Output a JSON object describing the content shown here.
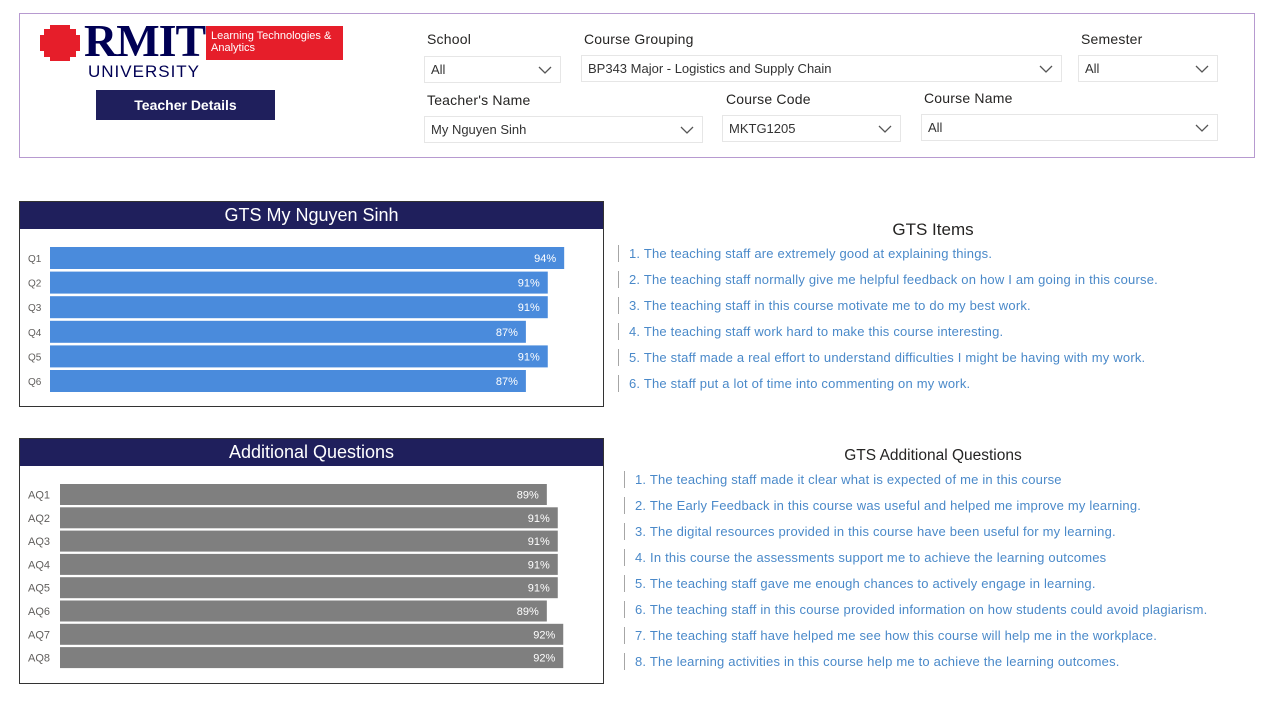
{
  "logo": {
    "wordmark": "RMIT",
    "university": "UNIVERSITY",
    "tag": "Learning Technologies & Analytics"
  },
  "header": {
    "teacher_details_button": "Teacher Details"
  },
  "filters": {
    "school": {
      "label": "School",
      "value": "All"
    },
    "course_grouping": {
      "label": "Course Grouping",
      "value": "BP343 Major - Logistics and Supply Chain"
    },
    "semester": {
      "label": "Semester",
      "value": "All"
    },
    "teacher_name": {
      "label": "Teacher's Name",
      "value": "My Nguyen Sinh"
    },
    "course_code": {
      "label": "Course Code",
      "value": "MKTG1205"
    },
    "course_name": {
      "label": "Course Name",
      "value": "All"
    }
  },
  "colors": {
    "navy": "#1f1f5c",
    "gts_bar": "#4a8bdc",
    "additional_bar": "#7f7f7f",
    "item_text": "#4a89c9",
    "brand_red": "#e61e2a"
  },
  "chart_data": [
    {
      "type": "bar",
      "orientation": "horizontal",
      "title": "GTS My Nguyen Sinh",
      "categories": [
        "Q1",
        "Q2",
        "Q3",
        "Q4",
        "Q5",
        "Q6"
      ],
      "values": [
        94,
        91,
        91,
        87,
        91,
        87
      ],
      "data_labels": [
        "94%",
        "91%",
        "91%",
        "87%",
        "91%",
        "87%"
      ],
      "unit": "%",
      "xlim": [
        0,
        100
      ],
      "grid": false,
      "legend": "none"
    },
    {
      "type": "bar",
      "orientation": "horizontal",
      "title": "Additional Questions",
      "categories": [
        "AQ1",
        "AQ2",
        "AQ3",
        "AQ4",
        "AQ5",
        "AQ6",
        "AQ7",
        "AQ8"
      ],
      "values": [
        89,
        91,
        91,
        91,
        91,
        89,
        92,
        92
      ],
      "data_labels": [
        "89%",
        "91%",
        "91%",
        "91%",
        "91%",
        "89%",
        "92%",
        "92%"
      ],
      "unit": "%",
      "xlim": [
        0,
        100
      ],
      "grid": false,
      "legend": "none"
    }
  ],
  "gts_items": {
    "title": "GTS Items",
    "items": [
      "1. The teaching staff are extremely good at explaining things.",
      "2. The teaching staff normally give me helpful feedback on how I am going in this course.",
      "3. The teaching staff in this course motivate me to do my best work.",
      "4. The teaching staff work hard to make this course interesting.",
      "5. The staff made a real effort to understand difficulties I might be having with my work.",
      "6. The staff put a lot of time into commenting on my work."
    ]
  },
  "gts_additional": {
    "title": "GTS Additional Questions",
    "items": [
      "1. The teaching staff made it clear what is expected of me in this course",
      "2. The Early Feedback in this course was useful and helped me improve my learning.",
      "3. The digital resources provided in this course have been useful for my learning.",
      "4. In this course the assessments support me to achieve the learning outcomes",
      "5. The teaching staff gave me enough chances to actively engage in learning.",
      "6. The teaching staff in this course provided information on how students could avoid plagiarism.",
      "7. The teaching staff have helped me see how this course will help me in the workplace.",
      "8. The learning activities in this course help me to achieve the learning outcomes."
    ]
  }
}
